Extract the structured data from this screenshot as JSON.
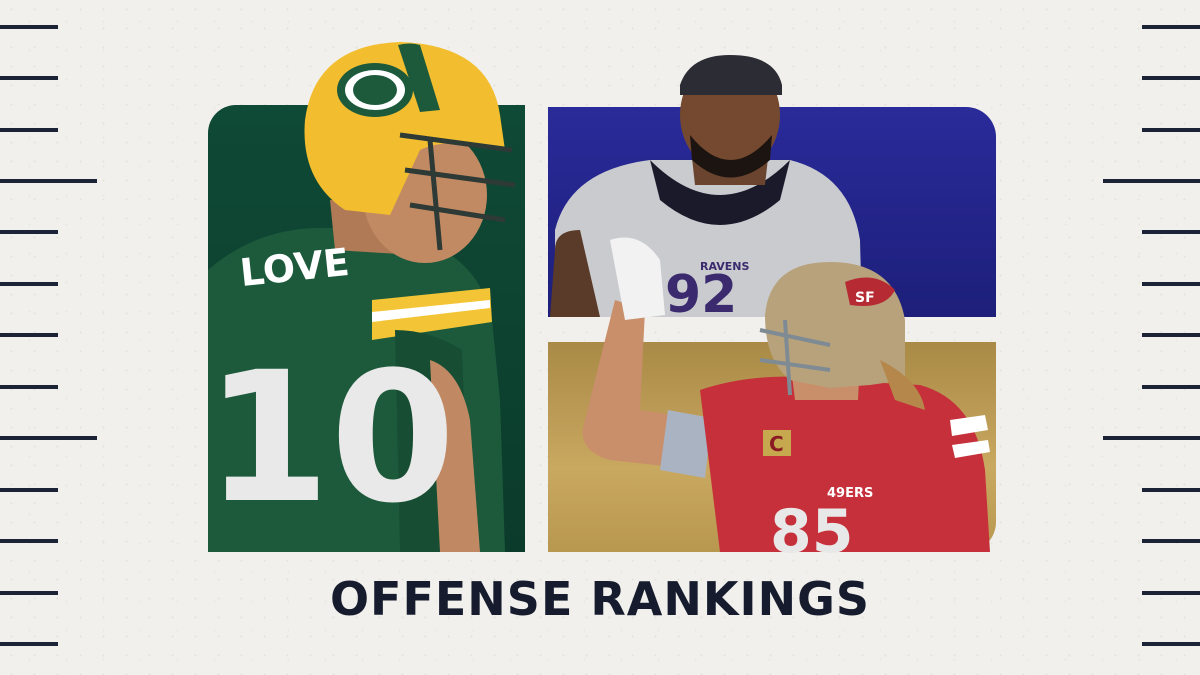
{
  "title": "OFFENSE RANKINGS",
  "colors": {
    "background": "#f1f0ec",
    "ticks": "#1c2336",
    "green_panel": "#0f4a36",
    "purple_panel": "#24248a",
    "gold_panel": "#c0a05a",
    "title": "#161c2e"
  },
  "players": [
    {
      "team": "packers",
      "jersey_name": "LOVE",
      "jersey_number": "10"
    },
    {
      "team": "ravens",
      "jersey_text": "RAVENS"
    },
    {
      "team": "49ers",
      "jersey_text": "49ERS",
      "captain_patch": "C"
    }
  ]
}
